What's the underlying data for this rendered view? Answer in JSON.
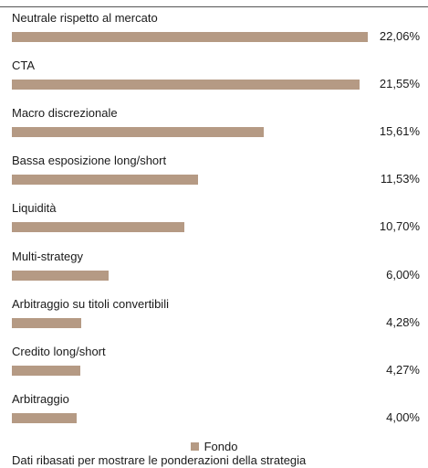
{
  "chart_data": {
    "type": "bar",
    "orientation": "horizontal",
    "categories": [
      "Neutrale rispetto al mercato",
      "CTA",
      "Macro discrezionale",
      "Bassa esposizione long/short",
      "Liquidità",
      "Multi-strategy",
      "Arbitraggio su titoli convertibili",
      "Credito long/short",
      "Arbitraggio"
    ],
    "series": [
      {
        "name": "Fondo",
        "values": [
          22.06,
          21.55,
          15.61,
          11.53,
          10.7,
          6.0,
          4.28,
          4.27,
          4.0
        ],
        "value_labels": [
          "22,06%",
          "21,55%",
          "15,61%",
          "11,53%",
          "10,70%",
          "6,00%",
          "4,28%",
          "4,27%",
          "4,00%"
        ],
        "color": "#b59a84"
      }
    ],
    "xlim": [
      0,
      25
    ],
    "grid": false,
    "legend_position": "bottom-center",
    "footnote": "Dati ribasati per mostrare le ponderazioni della strategia"
  }
}
